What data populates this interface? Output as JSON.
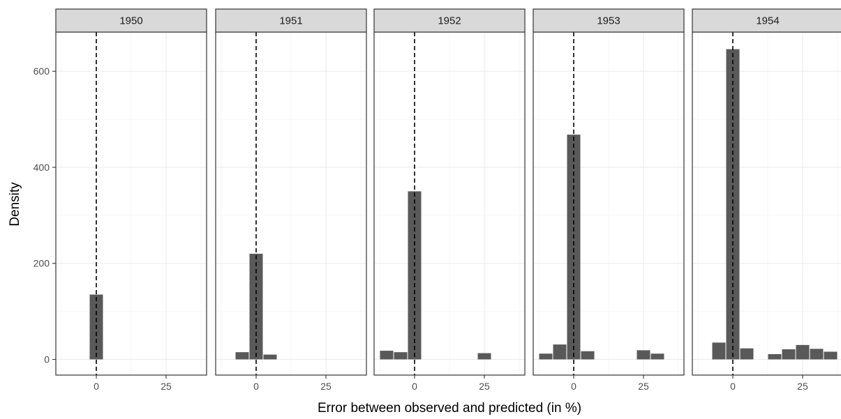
{
  "chart_data": {
    "type": "bar",
    "subtype": "faceted-histogram",
    "xlabel": "Error between observed and predicted (in %)",
    "ylabel": "Density",
    "xlim": [
      -12,
      36
    ],
    "ylim": [
      -30,
      680
    ],
    "x_ticks": [
      0,
      25
    ],
    "x_tick_labels": [
      "0",
      "25"
    ],
    "y_ticks": [
      0,
      200,
      400,
      600
    ],
    "y_tick_labels": [
      "0",
      "200",
      "400",
      "600"
    ],
    "bin_width": 5,
    "reference_line_x": 0,
    "grid": true,
    "bar_color": "#595959",
    "reference_line_color": "#000000",
    "strip_color": "#d9d9d9",
    "panels": [
      {
        "strip_label": "1950",
        "bars": [
          {
            "x": 0,
            "y": 135
          }
        ]
      },
      {
        "strip_label": "1951",
        "bars": [
          {
            "x": -5,
            "y": 15
          },
          {
            "x": 0,
            "y": 220
          },
          {
            "x": 5,
            "y": 10
          }
        ]
      },
      {
        "strip_label": "1952",
        "bars": [
          {
            "x": -10,
            "y": 18
          },
          {
            "x": -5,
            "y": 15
          },
          {
            "x": 0,
            "y": 350
          },
          {
            "x": 25,
            "y": 13
          }
        ]
      },
      {
        "strip_label": "1953",
        "bars": [
          {
            "x": -10,
            "y": 12
          },
          {
            "x": -5,
            "y": 31
          },
          {
            "x": 0,
            "y": 468
          },
          {
            "x": 5,
            "y": 17
          },
          {
            "x": 25,
            "y": 19
          },
          {
            "x": 30,
            "y": 12
          }
        ]
      },
      {
        "strip_label": "1954",
        "bars": [
          {
            "x": -5,
            "y": 35
          },
          {
            "x": 0,
            "y": 646
          },
          {
            "x": 5,
            "y": 23
          },
          {
            "x": 15,
            "y": 11
          },
          {
            "x": 20,
            "y": 21
          },
          {
            "x": 25,
            "y": 30
          },
          {
            "x": 30,
            "y": 22
          },
          {
            "x": 35,
            "y": 16
          }
        ]
      }
    ]
  }
}
